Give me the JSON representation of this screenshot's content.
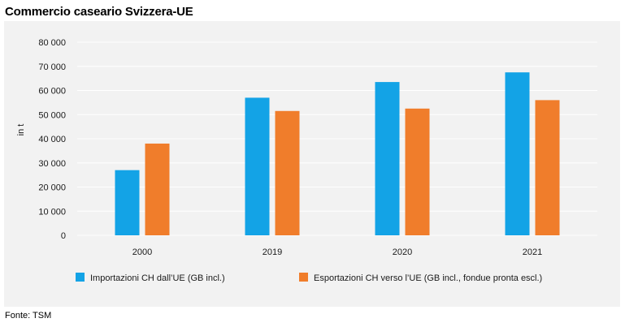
{
  "title": "Commercio caseario Svizzera-UE",
  "source": "Fonte: TSM",
  "chart_data": {
    "type": "bar",
    "title": "Commercio caseario Svizzera-UE",
    "xlabel": "",
    "ylabel": "in t",
    "ylim": [
      0,
      80000
    ],
    "yticks": [
      0,
      10000,
      20000,
      30000,
      40000,
      50000,
      60000,
      70000,
      80000
    ],
    "ytick_labels": [
      "0",
      "10 000",
      "20 000",
      "30 000",
      "40 000",
      "50 000",
      "60 000",
      "70 000",
      "80 000"
    ],
    "categories": [
      "2000",
      "2019",
      "2020",
      "2021"
    ],
    "grid": true,
    "legend_position": "bottom",
    "series": [
      {
        "name": "Importazioni CH dall’UE (GB incl.)",
        "color": "#13a3e6",
        "values": [
          27000,
          57000,
          63500,
          67500
        ]
      },
      {
        "name": "Esportazioni CH verso l’UE (GB incl., fondue pronta escl.)",
        "color": "#f07d2b",
        "values": [
          38000,
          51500,
          52500,
          56000
        ]
      }
    ]
  }
}
